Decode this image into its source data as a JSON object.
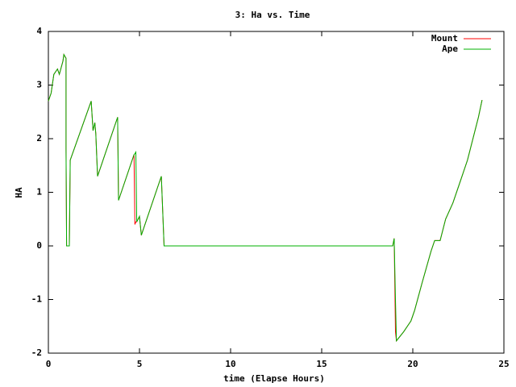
{
  "chart_data": {
    "type": "line",
    "title": "3: Ha vs. Time",
    "x_label": "time (Elapse Hours)",
    "y_label": "HA",
    "x": [
      0,
      0.15,
      0.3,
      0.5,
      0.6,
      0.8,
      0.85,
      0.97,
      0.97,
      1.0,
      1.15,
      1.2,
      2.35,
      2.45,
      2.55,
      2.6,
      2.7,
      3.8,
      3.85,
      4.7,
      4.75,
      4.8,
      4.85,
      5.0,
      5.1,
      6.2,
      6.35,
      18.9,
      18.98,
      19.05,
      19.1,
      19.5,
      19.9,
      20.1,
      20.5,
      21.0,
      21.2,
      21.5,
      21.8,
      22.2,
      22.6,
      23.0,
      23.3,
      23.6,
      23.8
    ],
    "series": [
      {
        "name": "Mount",
        "color": "#ff0000",
        "values": [
          2.7,
          2.85,
          3.2,
          3.3,
          3.2,
          3.45,
          3.57,
          3.5,
          1.8,
          0,
          0,
          1.6,
          2.7,
          2.15,
          2.3,
          2.1,
          1.3,
          2.4,
          0.85,
          1.7,
          0.4,
          0.45,
          0.45,
          0.55,
          0.2,
          1.3,
          0,
          0,
          0.14,
          -1.6,
          -1.77,
          -1.6,
          -1.4,
          -1.2,
          -0.7,
          -0.1,
          0.1,
          0.1,
          0.5,
          0.8,
          1.2,
          1.6,
          2.0,
          2.4,
          2.72
        ]
      },
      {
        "name": "Ape",
        "color": "#00b000",
        "values": [
          2.7,
          2.85,
          3.2,
          3.3,
          3.2,
          3.45,
          3.57,
          3.5,
          1.8,
          0,
          0,
          1.6,
          2.7,
          2.15,
          2.3,
          2.1,
          1.3,
          2.4,
          0.85,
          1.7,
          1.72,
          1.75,
          0.45,
          0.55,
          0.2,
          1.3,
          0,
          0,
          0.14,
          -1.0,
          -1.77,
          -1.6,
          -1.4,
          -1.2,
          -0.7,
          -0.1,
          0.1,
          0.1,
          0.5,
          0.8,
          1.2,
          1.6,
          2.0,
          2.4,
          2.72
        ]
      }
    ],
    "xlim": [
      0,
      25
    ],
    "xticks": [
      0,
      5,
      10,
      15,
      20,
      25
    ],
    "ylim": [
      -2,
      4
    ],
    "yticks": [
      -2,
      -1,
      0,
      1,
      2,
      3,
      4
    ],
    "legend": "top-right"
  }
}
